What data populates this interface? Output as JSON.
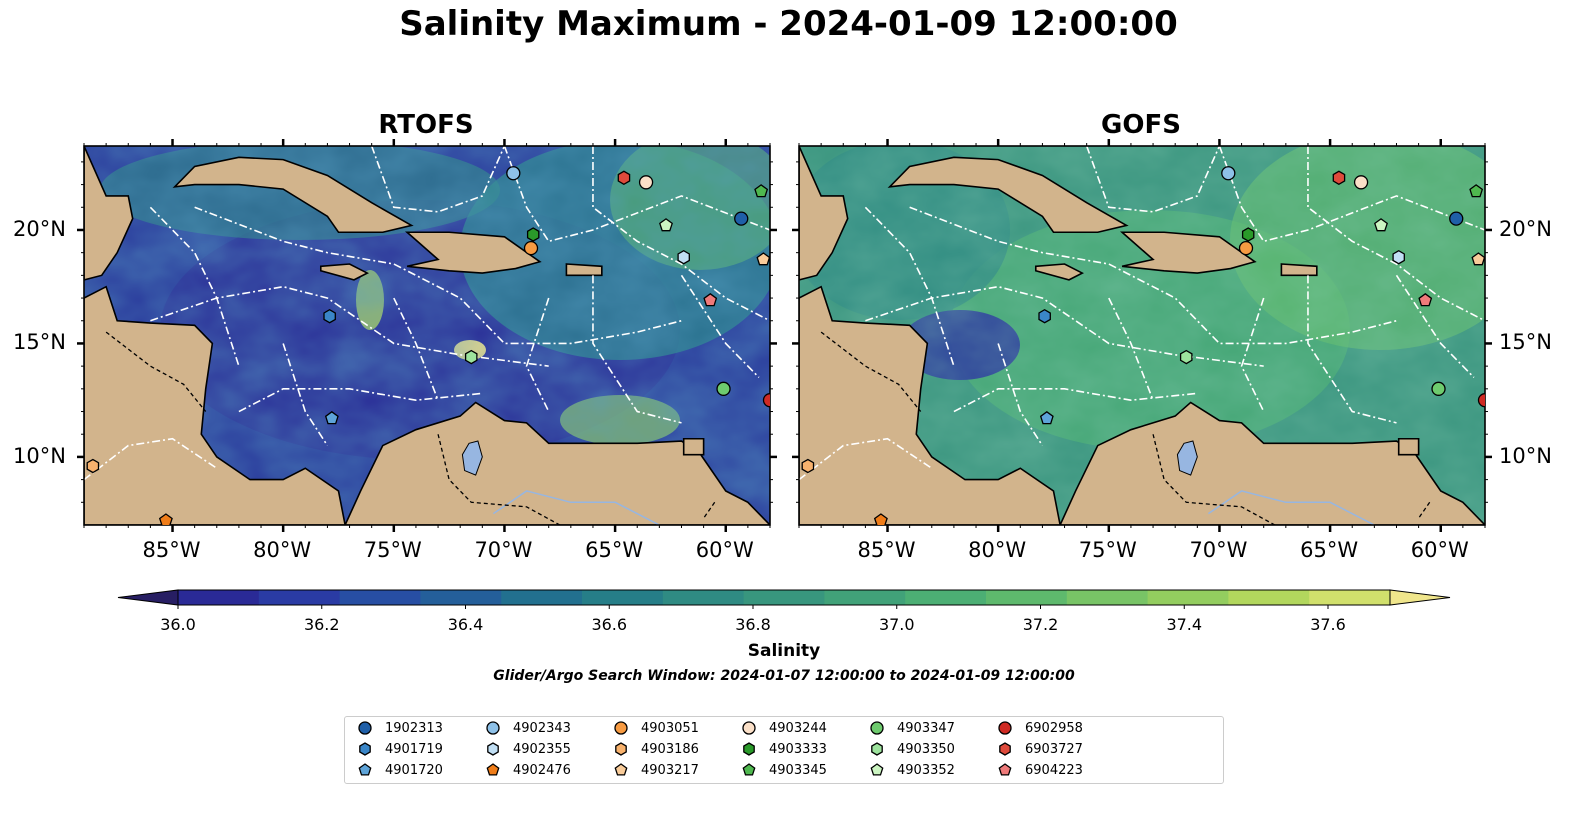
{
  "title": "Salinity Maximum - 2024-01-09 12:00:00",
  "panels": [
    {
      "title": "RTOFS",
      "field": "rtofs"
    },
    {
      "title": "GOFS",
      "field": "gofs"
    }
  ],
  "map_axes": {
    "lon_labels": [
      "85°W",
      "80°W",
      "75°W",
      "70°W",
      "65°W",
      "60°W"
    ],
    "lon_values": [
      -85,
      -80,
      -75,
      -70,
      -65,
      -60
    ],
    "lat_labels": [
      "20°N",
      "15°N",
      "10°N"
    ],
    "lat_values": [
      20,
      15,
      10
    ],
    "lon_range": [
      -89,
      -58
    ],
    "lat_range": [
      7,
      23.7
    ]
  },
  "colorbar": {
    "label": "Salinity",
    "ticks": [
      "36.0",
      "36.2",
      "36.4",
      "36.6",
      "36.8",
      "37.0",
      "37.2",
      "37.4",
      "37.6"
    ],
    "range": [
      35.9,
      37.7
    ],
    "extend": "both",
    "colors": [
      "#271e63",
      "#2a2a96",
      "#2a3ba4",
      "#274ea3",
      "#245f9a",
      "#22708f",
      "#267e88",
      "#2f8b83",
      "#38967e",
      "#41a279",
      "#4caf74",
      "#5eb96d",
      "#78c466",
      "#93cd5f",
      "#b2d75d",
      "#d1e06c",
      "#f0e68c"
    ]
  },
  "search_window": "Glider/Argo Search Window: 2024-01-07 12:00:00 to 2024-01-09 12:00:00",
  "land_color": "#d2b48c",
  "lake_color": "#97b6e1",
  "floats": [
    {
      "id": "1902313",
      "marker": "circle",
      "color": "#1f5fa8",
      "lon": -59.3,
      "lat": 20.5
    },
    {
      "id": "4901719",
      "marker": "hexagon",
      "color": "#3a86c8",
      "lon": -77.9,
      "lat": 16.2
    },
    {
      "id": "4901720",
      "marker": "pentagon",
      "color": "#5ea4d9",
      "lon": -77.8,
      "lat": 11.7
    },
    {
      "id": "4902343",
      "marker": "circle",
      "color": "#8ec1e8",
      "lon": -69.6,
      "lat": 22.5
    },
    {
      "id": "4902355",
      "marker": "hexagon",
      "color": "#c1dff4",
      "lon": -61.9,
      "lat": 18.8
    },
    {
      "id": "4902476",
      "marker": "pentagon",
      "color": "#f07d19",
      "lon": -85.3,
      "lat": 7.2
    },
    {
      "id": "4903051",
      "marker": "circle",
      "color": "#f79b42",
      "lon": -68.8,
      "lat": 19.2
    },
    {
      "id": "4903186",
      "marker": "hexagon",
      "color": "#f8b26d",
      "lon": -88.6,
      "lat": 9.6
    },
    {
      "id": "4903217",
      "marker": "pentagon",
      "color": "#f9cc9a",
      "lon": -58.3,
      "lat": 18.7
    },
    {
      "id": "4903244",
      "marker": "circle",
      "color": "#fbe0c8",
      "lon": -63.6,
      "lat": 22.1
    },
    {
      "id": "4903333",
      "marker": "hexagon",
      "color": "#2a9a2a",
      "lon": -68.7,
      "lat": 19.8
    },
    {
      "id": "4903345",
      "marker": "pentagon",
      "color": "#4fb84f",
      "lon": -58.4,
      "lat": 21.7
    },
    {
      "id": "4903347",
      "marker": "circle",
      "color": "#6ecb6e",
      "lon": -60.1,
      "lat": 13.0
    },
    {
      "id": "4903350",
      "marker": "hexagon",
      "color": "#9de39d",
      "lon": -71.5,
      "lat": 14.4
    },
    {
      "id": "4903352",
      "marker": "pentagon",
      "color": "#ccf5c2",
      "lon": -62.7,
      "lat": 20.2
    },
    {
      "id": "6902958",
      "marker": "circle",
      "color": "#cf2a23",
      "lon": -58.0,
      "lat": 12.5
    },
    {
      "id": "6903727",
      "marker": "hexagon",
      "color": "#de4a3b",
      "lon": -64.6,
      "lat": 22.3
    },
    {
      "id": "6904223",
      "marker": "pentagon",
      "color": "#ef7a7a",
      "lon": -60.7,
      "lat": 16.9
    }
  ]
}
